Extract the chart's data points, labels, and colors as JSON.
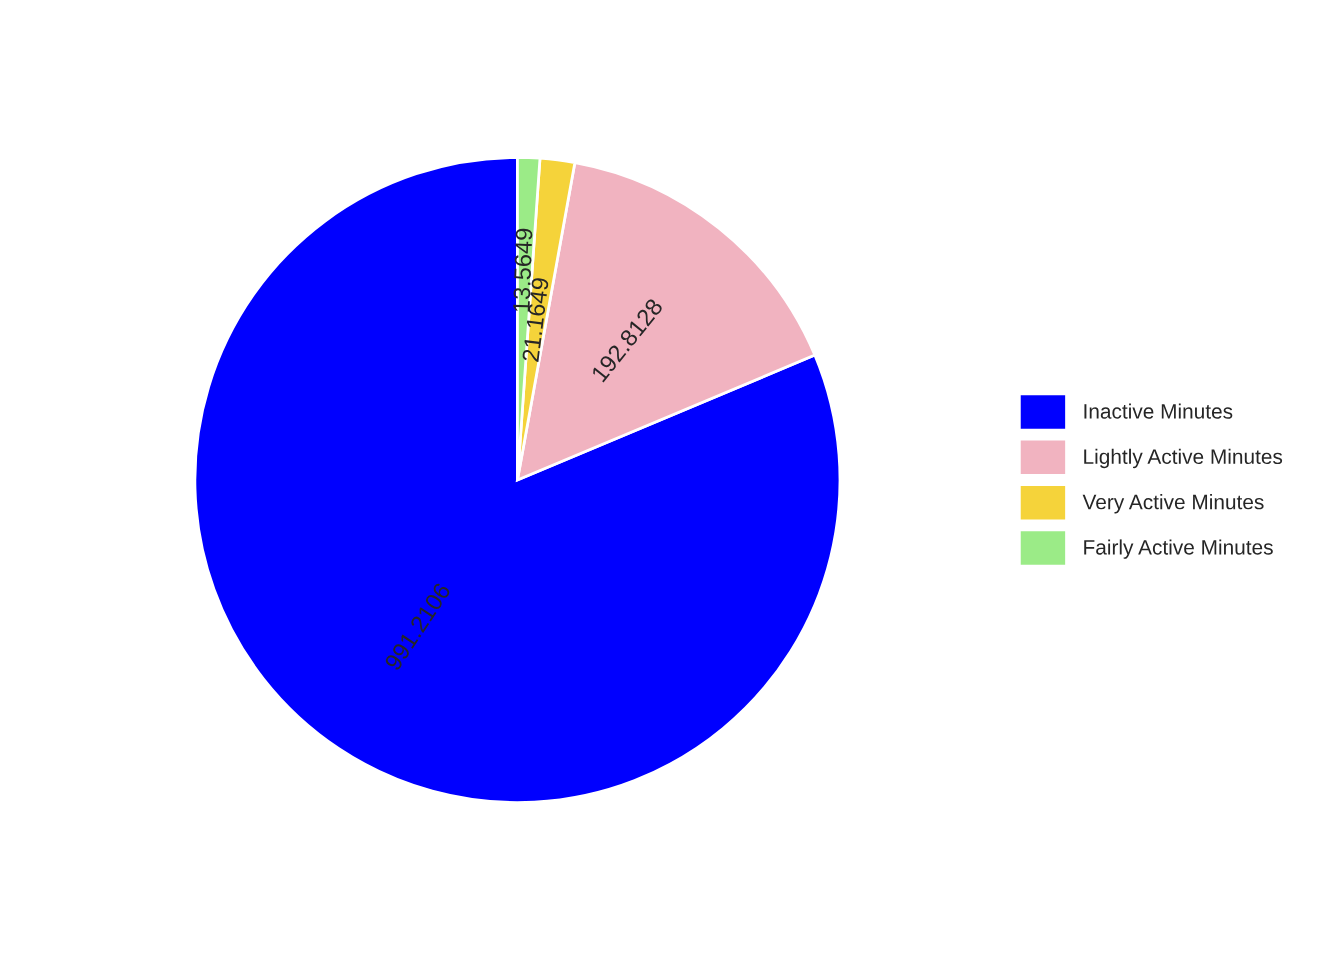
{
  "chart_data": {
    "type": "pie",
    "categories": [
      "Inactive Minutes",
      "Lightly Active Minutes",
      "Very Active Minutes",
      "Fairly Active Minutes"
    ],
    "values": [
      991.2106,
      192.8128,
      21.1649,
      13.5649
    ],
    "colors": [
      "#0000ff",
      "#f1b3c0",
      "#f5d33a",
      "#9beb87"
    ],
    "data_labels": true,
    "legend": "right"
  }
}
